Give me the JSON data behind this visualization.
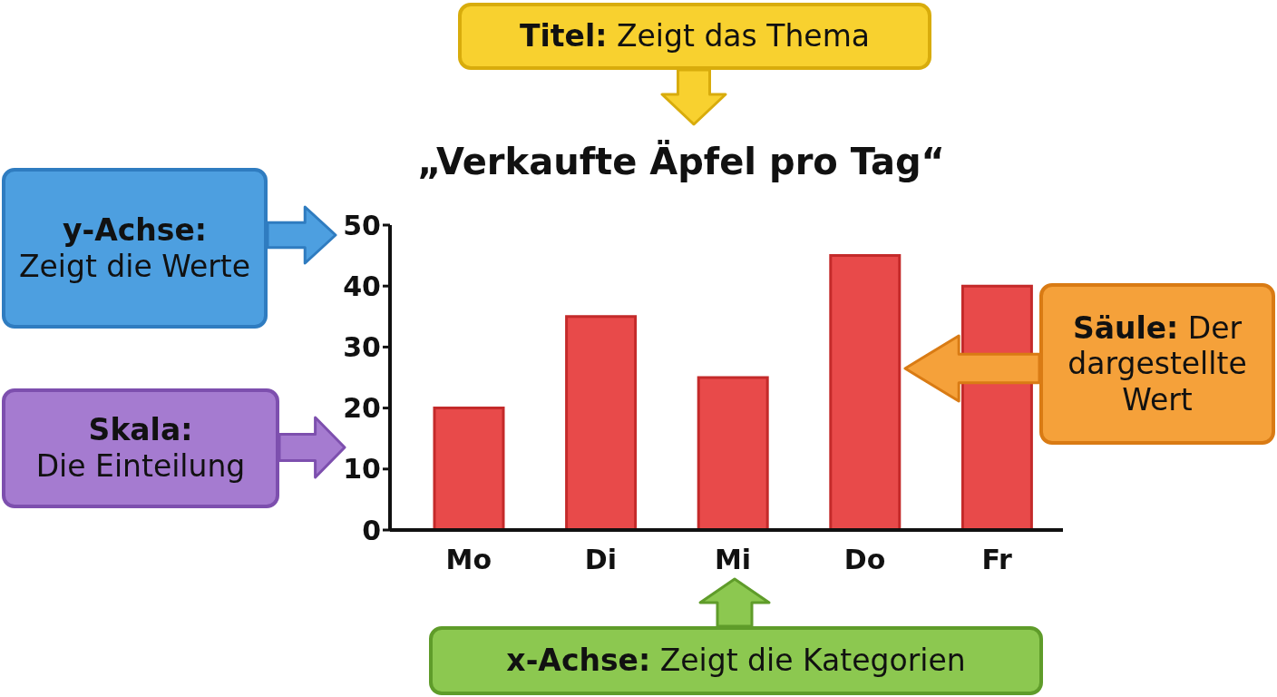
{
  "chart_data": {
    "type": "bar",
    "title": "„Verkaufte Äpfel pro Tag“",
    "categories": [
      "Mo",
      "Di",
      "Mi",
      "Do",
      "Fr"
    ],
    "values": [
      20,
      35,
      25,
      45,
      40
    ],
    "color": "#e84a4a",
    "ylim": [
      0,
      50
    ],
    "yticks": [
      0,
      10,
      20,
      30,
      40,
      50
    ],
    "grid": false,
    "legend": false,
    "annotations": [
      "Titel: Zeigt das Thema",
      "y-Achse: Zeigt die Werte",
      "Skala: Die Einteilung",
      "Säule: Der dargestellte Wert",
      "x-Achse: Zeigt die Kategorien"
    ]
  }
}
